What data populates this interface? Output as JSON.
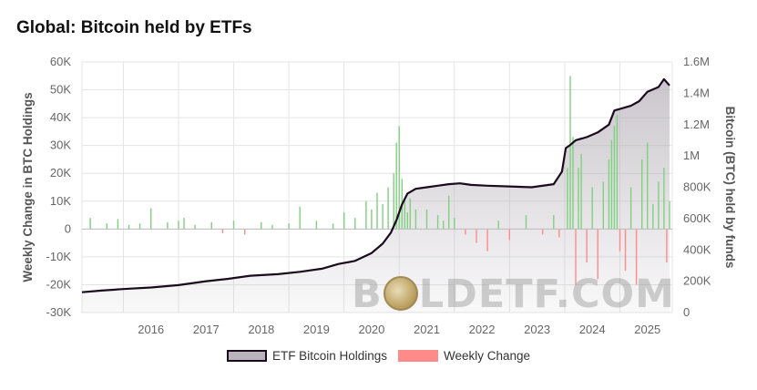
{
  "title": "Global: Bitcoin held by ETFs",
  "legend": {
    "holdings": "ETF Bitcoin Holdings",
    "weekly": "Weekly Change"
  },
  "watermark": {
    "left": "B",
    "right": "LDETF.COM"
  },
  "colors": {
    "holdings_line": "#1c0a1e",
    "holdings_fill": "#b9b3bb",
    "weekly_pos": "#7fd07f",
    "weekly_neg": "#ff8a8a",
    "grid": "#e4e4e4"
  },
  "chart_data": {
    "type": "area",
    "title": "Global: Bitcoin held by ETFs",
    "xlabel": "",
    "ylabel_left": "Weekly Change in BTC Holdings",
    "ylabel_right": "Bitcoin (BTC) held by funds",
    "ylim_left": [
      -30000,
      60000
    ],
    "ylim_right": [
      0,
      1600000
    ],
    "xlim": [
      2015.25,
      2025.95
    ],
    "x_ticks": [
      "2016",
      "2017",
      "2018",
      "2019",
      "2020",
      "2021",
      "2022",
      "2023",
      "2024",
      "2025"
    ],
    "y_left_ticks": [
      "60K",
      "50K",
      "40K",
      "30K",
      "20K",
      "10K",
      "0",
      "-10K",
      "-20K",
      "-30K"
    ],
    "y_right_ticks": [
      "1.6M",
      "1.4M",
      "1.2M",
      "1M",
      "800K",
      "600K",
      "400K",
      "200K",
      "0"
    ],
    "grid": true,
    "legend_position": "bottom-center",
    "series": [
      {
        "name": "ETF Bitcoin Holdings",
        "axis": "right",
        "x": [
          2015.25,
          2015.6,
          2016.0,
          2016.5,
          2017.0,
          2017.5,
          2017.9,
          2018.3,
          2018.8,
          2019.2,
          2019.6,
          2019.9,
          2020.2,
          2020.5,
          2020.7,
          2020.85,
          2020.95,
          2021.05,
          2021.15,
          2021.3,
          2021.5,
          2021.7,
          2021.9,
          2022.1,
          2022.3,
          2022.6,
          2023.0,
          2023.4,
          2023.8,
          2023.95,
          2024.02,
          2024.1,
          2024.2,
          2024.4,
          2024.6,
          2024.8,
          2024.9,
          2025.0,
          2025.2,
          2025.35,
          2025.5,
          2025.7,
          2025.8,
          2025.9
        ],
        "values": [
          130000,
          140000,
          150000,
          160000,
          175000,
          200000,
          215000,
          235000,
          245000,
          260000,
          280000,
          310000,
          330000,
          380000,
          440000,
          510000,
          590000,
          690000,
          760000,
          790000,
          800000,
          810000,
          820000,
          825000,
          815000,
          810000,
          805000,
          800000,
          820000,
          900000,
          1050000,
          1070000,
          1100000,
          1120000,
          1150000,
          1200000,
          1290000,
          1300000,
          1320000,
          1350000,
          1410000,
          1440000,
          1490000,
          1450000
        ]
      },
      {
        "name": "Weekly Change",
        "axis": "left",
        "x": [
          2015.4,
          2015.7,
          2015.9,
          2016.1,
          2016.3,
          2016.5,
          2016.8,
          2017.0,
          2017.1,
          2017.3,
          2017.6,
          2017.8,
          2018.0,
          2018.2,
          2018.5,
          2018.7,
          2019.0,
          2019.2,
          2019.5,
          2019.8,
          2020.0,
          2020.2,
          2020.4,
          2020.5,
          2020.6,
          2020.7,
          2020.8,
          2020.9,
          2020.95,
          2021.0,
          2021.05,
          2021.1,
          2021.15,
          2021.2,
          2021.3,
          2021.5,
          2021.7,
          2021.8,
          2021.9,
          2022.0,
          2022.2,
          2022.4,
          2022.6,
          2022.8,
          2023.0,
          2023.3,
          2023.6,
          2023.8,
          2023.9,
          2024.05,
          2024.1,
          2024.15,
          2024.2,
          2024.25,
          2024.3,
          2024.4,
          2024.5,
          2024.6,
          2024.7,
          2024.8,
          2024.85,
          2024.9,
          2024.95,
          2025.0,
          2025.1,
          2025.2,
          2025.3,
          2025.4,
          2025.5,
          2025.6,
          2025.7,
          2025.8,
          2025.85,
          2025.9
        ],
        "values": [
          4000,
          2000,
          3500,
          1500,
          2000,
          7500,
          2500,
          3000,
          4000,
          1500,
          2500,
          -1500,
          3000,
          -2000,
          2500,
          1500,
          2000,
          8000,
          3000,
          2000,
          6000,
          4000,
          10000,
          7000,
          13000,
          9000,
          15000,
          20000,
          31000,
          37000,
          18000,
          10000,
          6000,
          11000,
          7000,
          7000,
          5000,
          3000,
          12000,
          4000,
          -2000,
          -5000,
          -8000,
          3000,
          -4000,
          5000,
          -2000,
          5000,
          -3000,
          22000,
          55000,
          33000,
          -20000,
          22000,
          27000,
          -12000,
          15000,
          -18000,
          17000,
          25000,
          32000,
          37000,
          41000,
          -8000,
          -15000,
          15000,
          -20000,
          25000,
          31000,
          9000,
          17000,
          22000,
          -12000,
          10000
        ]
      }
    ]
  }
}
